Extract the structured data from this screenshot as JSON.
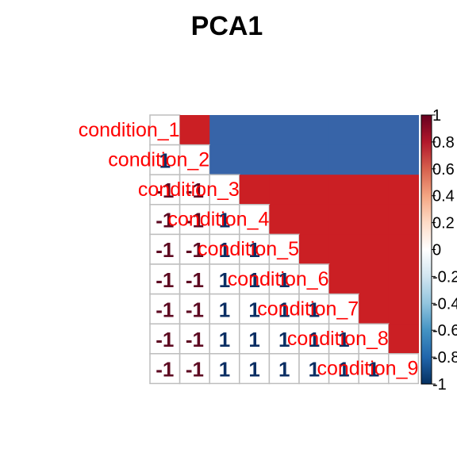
{
  "chart_data": {
    "type": "heatmap",
    "title": "PCA1",
    "layout": "mixed: lower triangle shows numbers, upper triangle colored cells, labels on diagonal",
    "variables": [
      "condition_1",
      "condition_2",
      "condition_3",
      "condition_4",
      "condition_5",
      "condition_6",
      "condition_7",
      "condition_8",
      "condition_9"
    ],
    "matrix": [
      [
        1,
        1,
        -1,
        -1,
        -1,
        -1,
        -1,
        -1,
        -1
      ],
      [
        1,
        1,
        -1,
        -1,
        -1,
        -1,
        -1,
        -1,
        -1
      ],
      [
        -1,
        -1,
        1,
        1,
        1,
        1,
        1,
        1,
        1
      ],
      [
        -1,
        -1,
        1,
        1,
        1,
        1,
        1,
        1,
        1
      ],
      [
        -1,
        -1,
        1,
        1,
        1,
        1,
        1,
        1,
        1
      ],
      [
        -1,
        -1,
        1,
        1,
        1,
        1,
        1,
        1,
        1
      ],
      [
        -1,
        -1,
        1,
        1,
        1,
        1,
        1,
        1,
        1
      ],
      [
        -1,
        -1,
        1,
        1,
        1,
        1,
        1,
        1,
        1
      ],
      [
        -1,
        -1,
        1,
        1,
        1,
        1,
        1,
        1,
        1
      ]
    ],
    "colorbar": {
      "range": [
        -1,
        1
      ],
      "ticks": [
        "1",
        "0.8",
        "0.6",
        "0.4",
        "0.2",
        "0",
        "-0.2",
        "-0.4",
        "-0.6",
        "-0.8",
        "-1"
      ],
      "colors": [
        "#053061",
        "#2166AC",
        "#4393C3",
        "#92C5DE",
        "#D1E5F0",
        "#FFFFFF",
        "#FDDBC7",
        "#F4A582",
        "#D6604D",
        "#B2182B",
        "#67001F"
      ]
    },
    "legend_position": "right",
    "grid": true,
    "colors": {
      "positive_cell": "#CB1F24",
      "negative_cell": "#3764A8",
      "positive_number": "#0B2E63",
      "negative_number": "#5E0A22",
      "label": "#FF0000",
      "grid_line": "#BEBEBE"
    }
  }
}
